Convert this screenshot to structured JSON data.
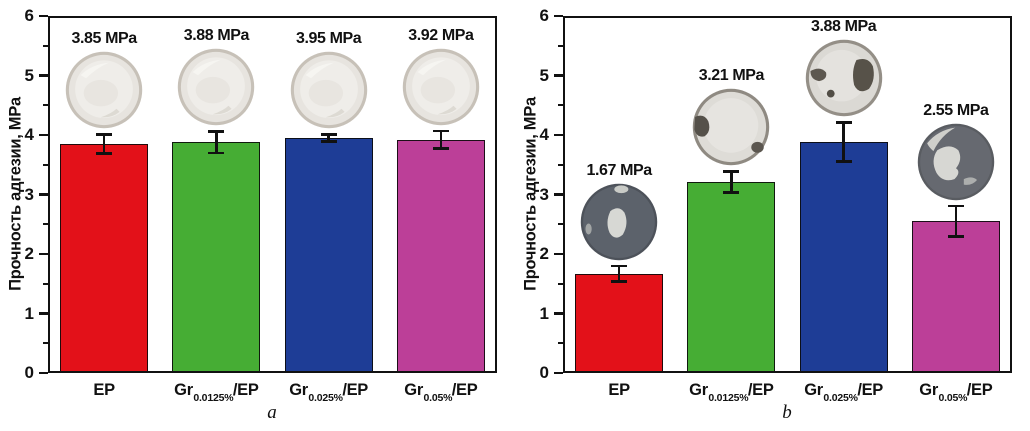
{
  "chart_data": [
    {
      "type": "bar",
      "panel_label": "a",
      "title": "",
      "xlabel": "",
      "ylabel": "Прочность адгезии, MPa",
      "ylim": [
        0,
        6
      ],
      "ytick_step": 1,
      "ytick_minor_step": 0.5,
      "grid": "off",
      "legend": "none",
      "unit": "MPa",
      "categories": [
        "EP",
        "Gr0.0125%/EP",
        "Gr0.025%/EP",
        "Gr0.05%/EP"
      ],
      "category_parts": [
        {
          "pre": "EP",
          "sub": "",
          "post": ""
        },
        {
          "pre": "Gr",
          "sub": "0.0125%",
          "post": "/EP"
        },
        {
          "pre": "Gr",
          "sub": "0.025%",
          "post": "/EP"
        },
        {
          "pre": "Gr",
          "sub": "0.05%",
          "post": "/EP"
        }
      ],
      "values": [
        3.85,
        3.88,
        3.95,
        3.92
      ],
      "errors": [
        0.18,
        0.2,
        0.08,
        0.17
      ],
      "bar_labels": [
        "3.85 MPa",
        "3.88 MPa",
        "3.95 MPa",
        "3.92 MPa"
      ],
      "bar_colors": [
        "#e31119",
        "#46ad34",
        "#1e3d96",
        "#bc3f98"
      ],
      "sample_photo_styles": [
        "clear-epoxy-disc",
        "clear-epoxy-disc",
        "clear-epoxy-disc",
        "clear-epoxy-disc"
      ]
    },
    {
      "type": "bar",
      "panel_label": "b",
      "title": "",
      "xlabel": "",
      "ylabel": "Прочность адгезии, MPa",
      "ylim": [
        0,
        6
      ],
      "ytick_step": 1,
      "ytick_minor_step": 0.5,
      "grid": "off",
      "legend": "none",
      "unit": "MPa",
      "categories": [
        "EP",
        "Gr0.0125%/EP",
        "Gr0.025%/EP",
        "Gr0.05%/EP"
      ],
      "category_parts": [
        {
          "pre": "EP",
          "sub": "",
          "post": ""
        },
        {
          "pre": "Gr",
          "sub": "0.0125%",
          "post": "/EP"
        },
        {
          "pre": "Gr",
          "sub": "0.025%",
          "post": "/EP"
        },
        {
          "pre": "Gr",
          "sub": "0.05%",
          "post": "/EP"
        }
      ],
      "values": [
        1.67,
        3.21,
        3.88,
        2.55
      ],
      "errors": [
        0.15,
        0.2,
        0.35,
        0.28
      ],
      "bar_labels": [
        "1.67 MPa",
        "3.21 MPa",
        "3.88 MPa",
        "2.55 MPa"
      ],
      "bar_colors": [
        "#e31119",
        "#46ad34",
        "#1e3d96",
        "#bc3f98"
      ],
      "sample_photo_styles": [
        "dark-disc-light-center",
        "light-disc-dark-left-patch",
        "light-disc-dark-right-patches",
        "dark-disc-light-left-blob"
      ]
    }
  ]
}
